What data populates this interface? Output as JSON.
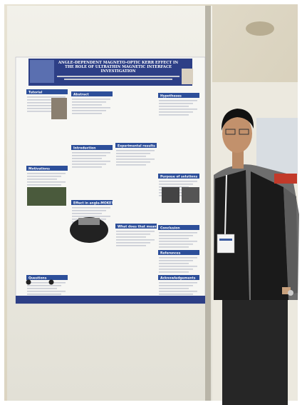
{
  "poster": {
    "title": "ANGLE-DEPENDENT MAGNETO-OPTIC KERR EFFECT IN THE ROLE OF ULTRATHIN MAGNETIC INTERFACE INVESTIGATION",
    "sections": [
      "Tutorial",
      "Abstract",
      "Introduction",
      "Motivations",
      "Hypotheses",
      "Experimental results",
      "Purpose of solutions",
      "Conclusion",
      "References",
      "Acknowledgements",
      "Questions",
      "What does that mean?",
      "Effect in angle-MOKE?"
    ]
  }
}
